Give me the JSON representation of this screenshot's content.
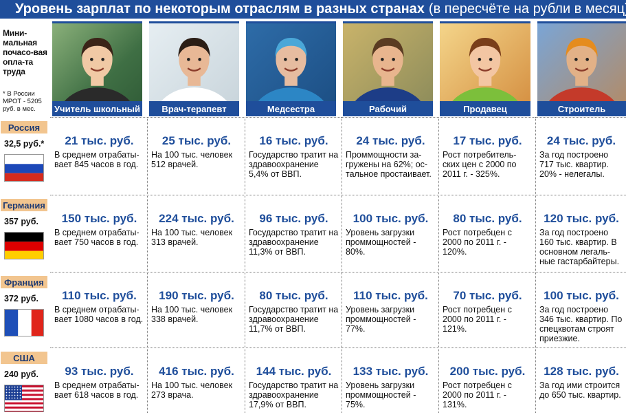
{
  "title": {
    "main": "Уровень зарплат по некоторым отраслям в разных странах",
    "sub": "(в пересчёте на рубли в месяц)"
  },
  "left_header": {
    "note": "Мини-мальная почасо-вая опла-та труда",
    "foot": "* В России МРОТ - 5205 руб. в мес."
  },
  "professions": [
    {
      "label": "Учитель школьный",
      "icon": "teacher-photo"
    },
    {
      "label": "Врач-терапевт",
      "icon": "doctor-photo"
    },
    {
      "label": "Медсестра",
      "icon": "nurse-photo"
    },
    {
      "label": "Рабочий",
      "icon": "worker-photo"
    },
    {
      "label": "Продавец",
      "icon": "seller-photo"
    },
    {
      "label": "Строитель",
      "icon": "builder-photo"
    }
  ],
  "countries": [
    {
      "name": "Россия",
      "mrot": "32,5 руб.*",
      "flag": "russia-flag",
      "cells": [
        {
          "amount": "21 тыс. руб.",
          "desc": "В среднем отрабаты-вает 845 часов в год."
        },
        {
          "amount": "25 тыс. руб.",
          "desc": "На 100 тыс. человек 512 врачей."
        },
        {
          "amount": "16 тыс. руб.",
          "desc": "Государство тратит на здравоохранение 5,4% от ВВП."
        },
        {
          "amount": "24 тыс. руб.",
          "desc": "Проммощности за-гружены на 62%; ос-тальное простаивает."
        },
        {
          "amount": "17 тыс. руб.",
          "desc": "Рост потребитель-ских цен с 2000 по 2011 г. - 325%."
        },
        {
          "amount": "24 тыс. руб.",
          "desc": "За год построено 717 тыс. квартир. 20% - нелегалы."
        }
      ]
    },
    {
      "name": "Германия",
      "mrot": "357 руб.",
      "flag": "germany-flag",
      "cells": [
        {
          "amount": "150 тыс. руб.",
          "desc": "В среднем отрабаты-вает 750 часов в год."
        },
        {
          "amount": "224 тыс. руб.",
          "desc": "На 100 тыс. человек 313 врачей."
        },
        {
          "amount": "96 тыс. руб.",
          "desc": "Государство тратит на здравоохранение 11,3% от ВВП."
        },
        {
          "amount": "100 тыс. руб.",
          "desc": "Уровень загрузки проммощностей - 80%."
        },
        {
          "amount": "80 тыс. руб.",
          "desc": "Рост потребцен с 2000 по 2011 г. - 120%."
        },
        {
          "amount": "120 тыс. руб.",
          "desc": "За год построено 160 тыс. квартир. В основном легаль-ные гастарбайтеры."
        }
      ]
    },
    {
      "name": "Франция",
      "mrot": "372 руб.",
      "flag": "france-flag",
      "cells": [
        {
          "amount": "110 тыс. руб.",
          "desc": "В среднем отрабаты-вает 1080 часов в год."
        },
        {
          "amount": "190 тыс. руб.",
          "desc": "На 100 тыс. человек 338 врачей."
        },
        {
          "amount": "80 тыс. руб.",
          "desc": "Государство тратит на здравоохранение 11,7% от ВВП."
        },
        {
          "amount": "110 тыс. руб.",
          "desc": "Уровень загрузки проммощностей - 77%."
        },
        {
          "amount": "70 тыс. руб.",
          "desc": "Рост потребцен с 2000 по 2011 г. - 121%."
        },
        {
          "amount": "100 тыс. руб.",
          "desc": "За год построено 346 тыс. квартир. По спецквотам строят приезжие."
        }
      ]
    },
    {
      "name": "США",
      "mrot": "240 руб.",
      "flag": "usa-flag",
      "cells": [
        {
          "amount": "93 тыс. руб.",
          "desc": "В среднем отрабаты-вает 618 часов в год."
        },
        {
          "amount": "416 тыс. руб.",
          "desc": "На 100 тыс. человек 273 врача."
        },
        {
          "amount": "144 тыс. руб.",
          "desc": "Государство тратит на здравоохранение 17,9% от ВВП."
        },
        {
          "amount": "133 тыс. руб.",
          "desc": "Уровень загрузки проммощностей - 75%."
        },
        {
          "amount": "200 тыс. руб.",
          "desc": "Рост потребцен с 2000 по 2011 г. - 131%."
        },
        {
          "amount": "128 тыс. руб.",
          "desc": "За год ими строится до 650 тыс. квартир."
        }
      ]
    }
  ],
  "colors": {
    "accent": "#1f4e9b",
    "country_label_bg": "#f2c58f"
  }
}
